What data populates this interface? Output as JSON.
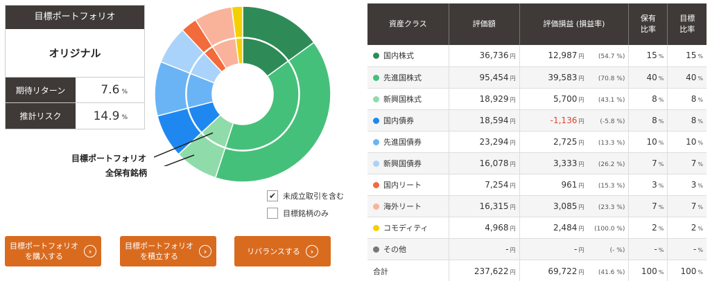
{
  "summary": {
    "header": "目標ポートフォリオ",
    "name": "オリジナル",
    "expected_return_label": "期待リターン",
    "expected_return_value": "7.6",
    "risk_label": "推計リスク",
    "risk_value": "14.9",
    "unit": "%"
  },
  "donut": {
    "label_target": "目標ポートフォリオ",
    "label_holdings": "全保有銘柄",
    "outer_ring": "target",
    "inner_ring": "holdings"
  },
  "checkboxes": [
    {
      "label": "未成立取引を含む",
      "checked": true
    },
    {
      "label": "目標銘柄のみ",
      "checked": false
    }
  ],
  "buttons": {
    "buy": "目標ポートフォリオ\nを購入する",
    "accumulate": "目標ポートフォリオ\nを積立する",
    "rebalance": "リバランスする"
  },
  "table": {
    "headers": {
      "asset_class": "資産クラス",
      "value": "評価額",
      "pl": "評価損益 (損益率)",
      "held_ratio": "保有\n比率",
      "target_ratio": "目標\n比率"
    },
    "yen": "円",
    "pct": "%",
    "rows": [
      {
        "name": "国内株式",
        "color": "#2e8b57",
        "value": "36,736",
        "pl": "12,987",
        "rate": "(54.7 %)",
        "held": "15",
        "target": "15",
        "neg": false
      },
      {
        "name": "先進国株式",
        "color": "#45c07a",
        "value": "95,454",
        "pl": "39,583",
        "rate": "(70.8 %)",
        "held": "40",
        "target": "40",
        "neg": false
      },
      {
        "name": "新興国株式",
        "color": "#8fdcaa",
        "value": "18,929",
        "pl": "5,700",
        "rate": "(43.1 %)",
        "held": "8",
        "target": "8",
        "neg": false
      },
      {
        "name": "国内債券",
        "color": "#1e88f0",
        "value": "18,594",
        "pl": "-1,136",
        "rate": "(-5.8 %)",
        "held": "8",
        "target": "8",
        "neg": true
      },
      {
        "name": "先進国債券",
        "color": "#6ab4f5",
        "value": "23,294",
        "pl": "2,725",
        "rate": "(13.3 %)",
        "held": "10",
        "target": "10",
        "neg": false
      },
      {
        "name": "新興国債券",
        "color": "#a9d3fa",
        "value": "16,078",
        "pl": "3,333",
        "rate": "(26.2 %)",
        "held": "7",
        "target": "7",
        "neg": false
      },
      {
        "name": "国内リート",
        "color": "#f26b3a",
        "value": "7,254",
        "pl": "961",
        "rate": "(15.3 %)",
        "held": "3",
        "target": "3",
        "neg": false
      },
      {
        "name": "海外リート",
        "color": "#f9b39a",
        "value": "16,315",
        "pl": "3,085",
        "rate": "(23.3 %)",
        "held": "7",
        "target": "7",
        "neg": false
      },
      {
        "name": "コモディティ",
        "color": "#f5d000",
        "value": "4,968",
        "pl": "2,484",
        "rate": "(100.0 %)",
        "held": "2",
        "target": "2",
        "neg": false
      },
      {
        "name": "その他",
        "color": "#777777",
        "value": "-",
        "pl": "-",
        "rate": "(- %)",
        "held": "-",
        "target": "-",
        "neg": false
      }
    ],
    "total": {
      "name": "合計",
      "value": "237,622",
      "pl": "69,722",
      "rate": "(41.6 %)",
      "held": "100",
      "target": "100"
    }
  }
}
